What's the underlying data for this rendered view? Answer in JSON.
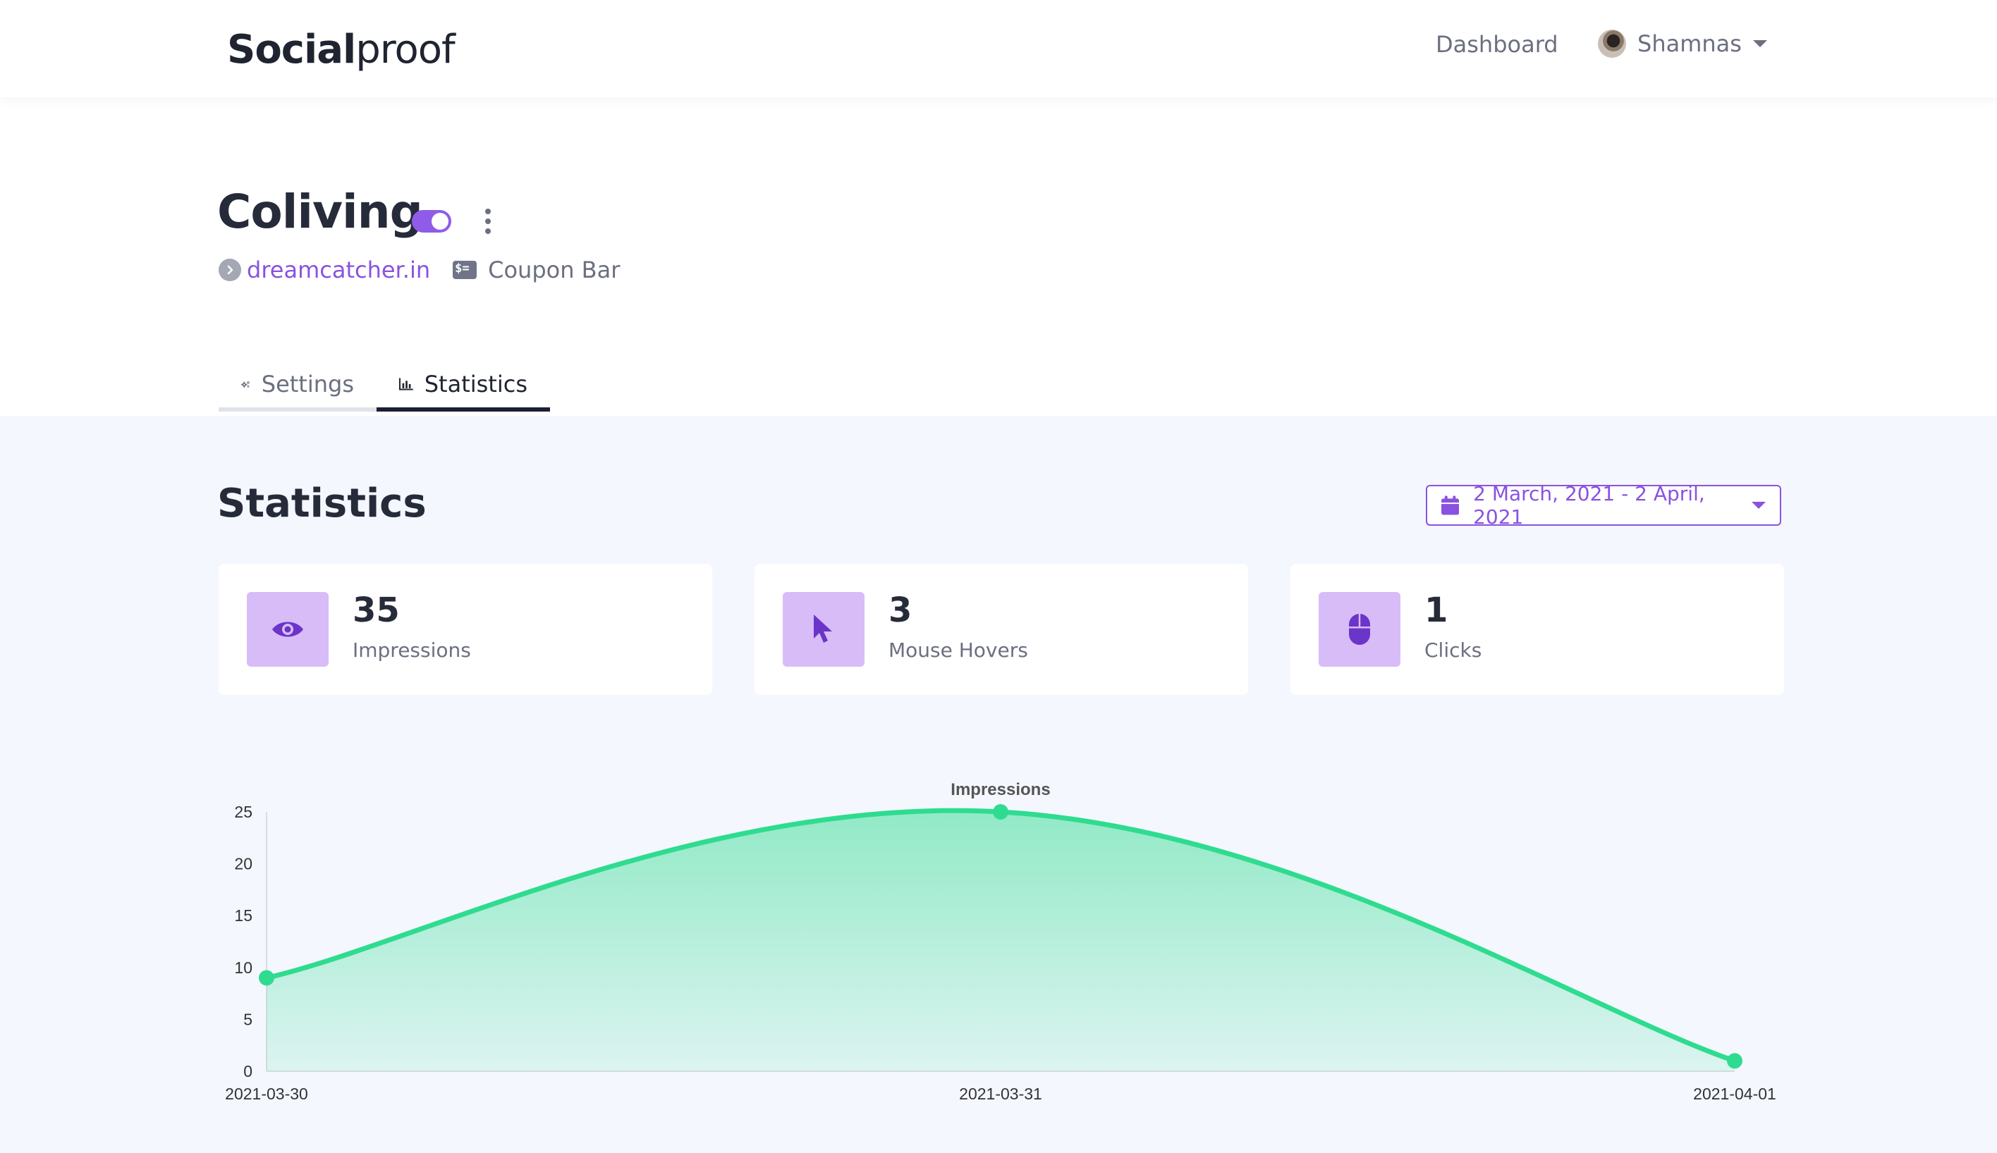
{
  "header": {
    "brand": {
      "bold": "Social",
      "light": "proof"
    },
    "nav_dashboard": "Dashboard",
    "user_name": "Shamnas"
  },
  "campaign": {
    "title": "Coliving",
    "enabled": true,
    "site": "dreamcatcher.in",
    "type": "Coupon Bar"
  },
  "tabs": [
    {
      "label": "Settings",
      "active": false,
      "icon": "gears-icon"
    },
    {
      "label": "Statistics",
      "active": true,
      "icon": "bar-chart-icon"
    }
  ],
  "statistics": {
    "title": "Statistics",
    "date_range": "2 March, 2021 - 2 April, 2021",
    "cards": [
      {
        "value": "35",
        "label": "Impressions",
        "icon": "eye-icon"
      },
      {
        "value": "3",
        "label": "Mouse Hovers",
        "icon": "cursor-icon"
      },
      {
        "value": "1",
        "label": "Clicks",
        "icon": "mouse-icon"
      }
    ]
  },
  "colors": {
    "accent": "#8a52e0",
    "icon_box": "#d8bcf7",
    "series": "#2fdc8f"
  },
  "chart_data": {
    "type": "area",
    "x": [
      "2021-03-30",
      "2021-03-31",
      "2021-04-01"
    ],
    "series": [
      {
        "name": "Impressions",
        "values": [
          9,
          25,
          1
        ]
      }
    ],
    "y_ticks": [
      0,
      5,
      10,
      15,
      20,
      25
    ],
    "ylim": [
      0,
      25
    ],
    "grid": false,
    "legend": "top-center"
  }
}
